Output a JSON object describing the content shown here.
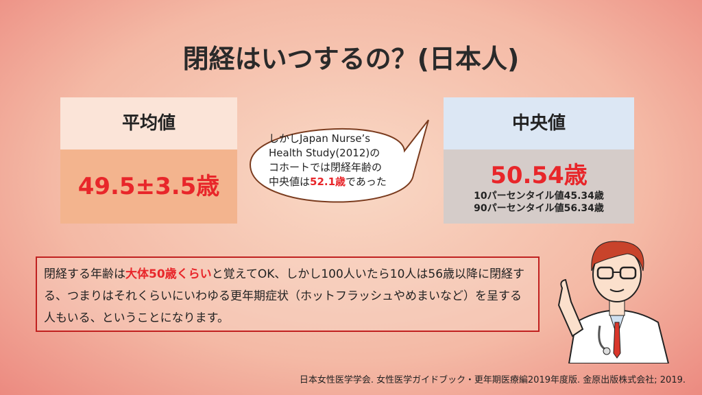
{
  "title": "閉経はいつするの？(日本人)",
  "mean_box": {
    "header": "平均値",
    "value": "49.5±3.5歳"
  },
  "bubble": {
    "lines": [
      "しかしJapan Nurse’s",
      "Health Study(2012)の",
      "コホートでは閉経年齢の"
    ],
    "last_line": {
      "before": "中央値は",
      "highlight": "52.1歳",
      "after": "であった"
    }
  },
  "median_box": {
    "header": "中央値",
    "value": "50.54歳",
    "details": [
      "10パーセンタイル値45.34歳",
      "90パーセンタイル値56.34歳"
    ]
  },
  "note": {
    "before": "閉経する年齢は",
    "highlight": "大体50歳くらい",
    "after": "と覚えてOK、しかし100人いたら10人は56歳以降に閉経する、つまりはそれくらいにいわゆる更年期症状（ホットフラッシュやめまいなど）を呈する人もいる、ということになります。"
  },
  "citation": "日本女性医学学会. 女性医学ガイドブック・更年期医療編2019年度版. 金原出版株式会社; 2019."
}
